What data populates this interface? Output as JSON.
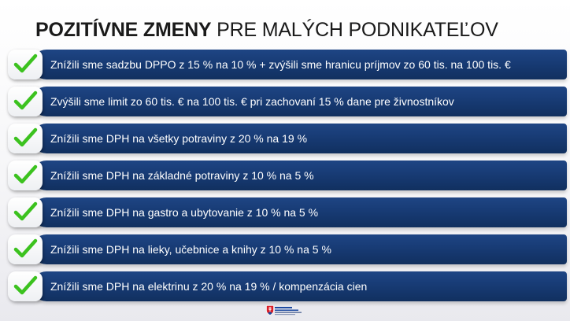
{
  "title": {
    "bold": "POZITÍVNE ZMENY",
    "light": "PRE MALÝCH PODNIKATEĽOV"
  },
  "items": [
    {
      "text": "Znížili sme sadzbu DPPO z 15 % na 10 % + zvýšili sme hranicu príjmov zo 60 tis. na 100 tis. €",
      "icon": "check-icon"
    },
    {
      "text": "Zvýšili sme limit zo 60 tis. € na 100 tis. € pri zachovaní 15 % dane pre živnostníkov",
      "icon": "check-icon"
    },
    {
      "text": "Znížili sme DPH na všetky potraviny z 20 % na 19 %",
      "icon": "check-icon"
    },
    {
      "text": "Znížili sme DPH na základné potraviny z 10 % na 5 %",
      "icon": "check-icon"
    },
    {
      "text": "Znížili sme DPH na gastro a ubytovanie z 10 % na 5 %",
      "icon": "check-icon"
    },
    {
      "text": "Znížili sme DPH na lieky, učebnice a knihy z 10 % na 5 %",
      "icon": "check-icon"
    },
    {
      "text": "Znížili sme DPH na elektrinu z 20 % na 19 % / kompenzácia cien",
      "icon": "check-icon"
    }
  ],
  "colors": {
    "bar": "#173a73",
    "check": "#3cc21f",
    "title": "#1a1a1a"
  },
  "footer": {
    "logo": "government-logo"
  }
}
